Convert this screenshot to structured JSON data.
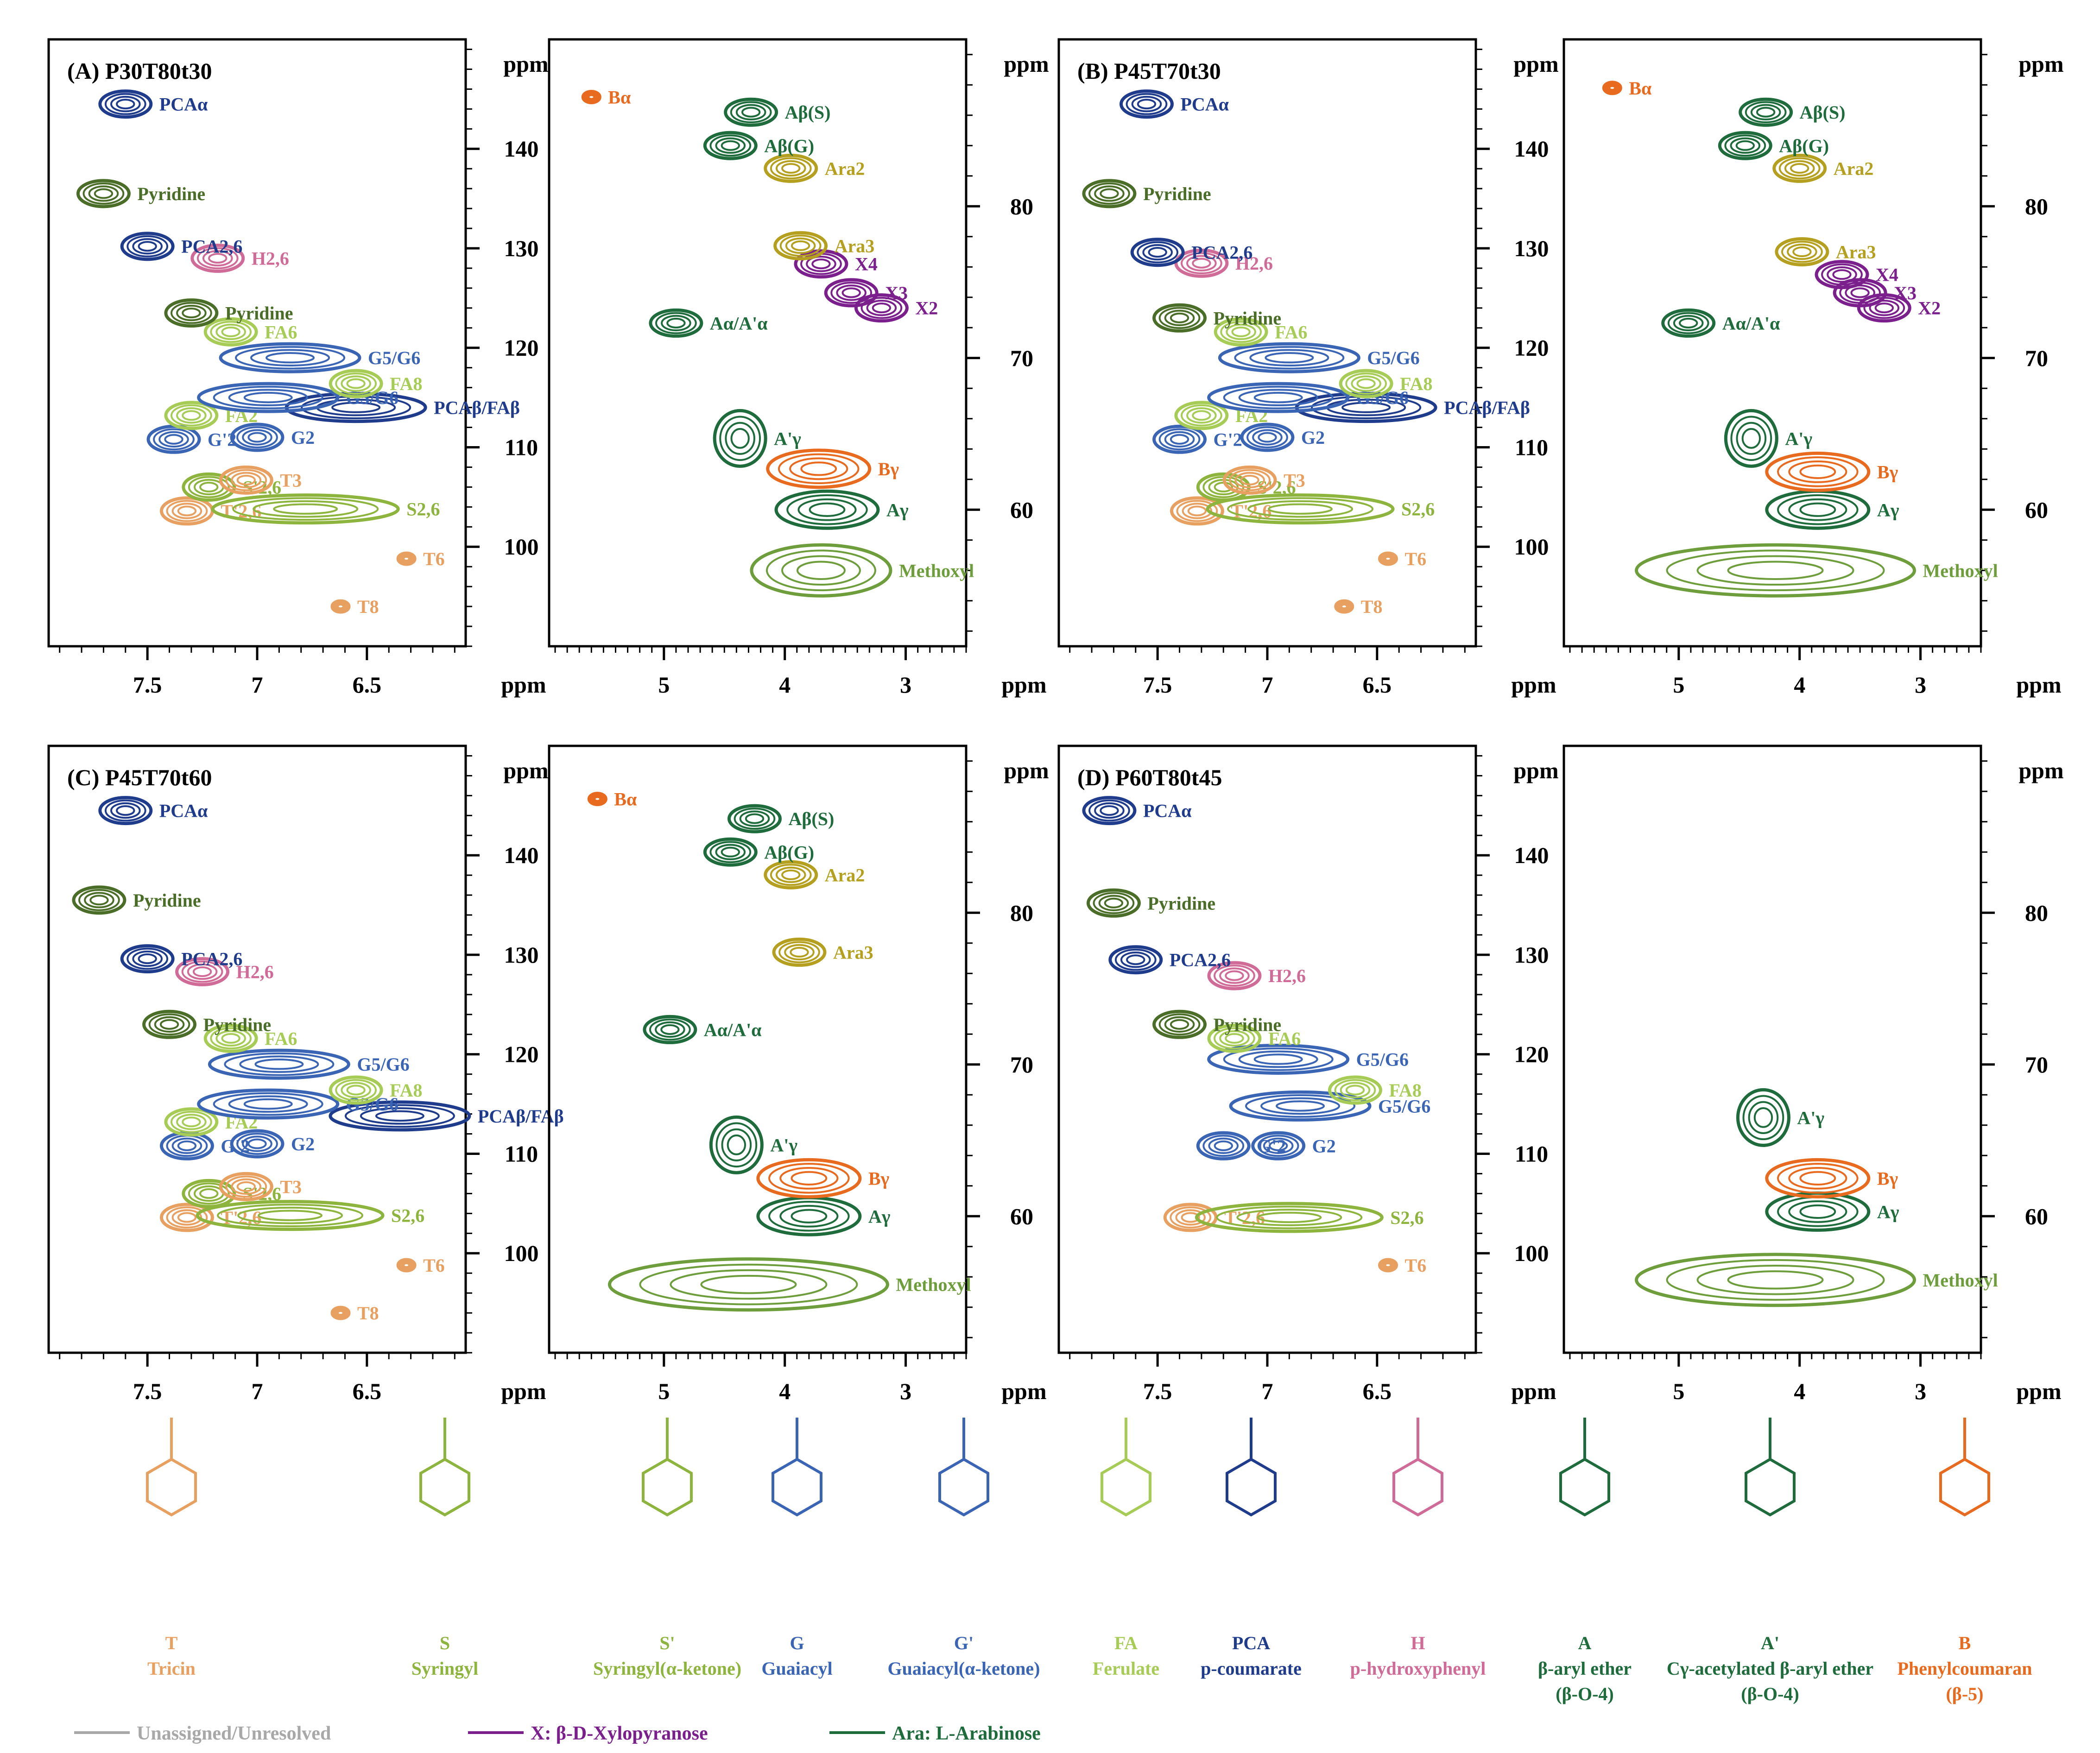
{
  "colors": {
    "tricin": "#E8A060",
    "syringyl": "#8DB43C",
    "guaiacyl": "#3A64B4",
    "ferulate": "#A6CC56",
    "pca": "#1F3C8C",
    "hydroxyphenyl": "#D06A96",
    "aryl_ether": "#1E6B3C",
    "methoxyl": "#6E9E3C",
    "phenylcoumaran": "#E86A1E",
    "xylose": "#7A1F8C",
    "arabinose": "#B4A01E",
    "pyridine": "#4A6E28",
    "unassigned": "#A8A8A8"
  },
  "chart_data": [
    {
      "type": "scatter",
      "title": "(A) P30T80t30",
      "region": "aromatic",
      "xlabel": "ppm",
      "ylabel": "ppm",
      "xlim": [
        7.95,
        6.05
      ],
      "ylim": [
        151,
        90
      ],
      "xticks": [
        7.5,
        7.0,
        6.5
      ],
      "yticks": [
        100,
        110,
        120,
        130,
        140
      ],
      "peaks": [
        {
          "label": "T8",
          "x": 6.62,
          "y": 94,
          "color": "tricin"
        },
        {
          "label": "T6",
          "x": 6.32,
          "y": 98.8,
          "color": "tricin"
        },
        {
          "label": "T'2,6",
          "x": 7.32,
          "y": 103.6,
          "color": "tricin"
        },
        {
          "label": "S2,6",
          "x": 6.78,
          "y": 103.8,
          "color": "syringyl"
        },
        {
          "label": "S'2,6",
          "x": 7.22,
          "y": 106,
          "color": "syringyl"
        },
        {
          "label": "T3",
          "x": 7.05,
          "y": 106.7,
          "color": "tricin"
        },
        {
          "label": "G'2",
          "x": 7.38,
          "y": 110.8,
          "color": "guaiacyl"
        },
        {
          "label": "G2",
          "x": 7.0,
          "y": 111,
          "color": "guaiacyl"
        },
        {
          "label": "PCAβ/FAβ",
          "x": 6.55,
          "y": 114,
          "color": "pca"
        },
        {
          "label": "FA2",
          "x": 7.3,
          "y": 113.2,
          "color": "ferulate"
        },
        {
          "label": "G5/G6",
          "x": 6.95,
          "y": 115,
          "color": "guaiacyl"
        },
        {
          "label": "G5/G6",
          "x": 6.85,
          "y": 119,
          "color": "guaiacyl"
        },
        {
          "label": "FA8",
          "x": 6.55,
          "y": 116.4,
          "color": "ferulate"
        },
        {
          "label": "FA6",
          "x": 7.12,
          "y": 121.6,
          "color": "ferulate"
        },
        {
          "label": "Pyridine",
          "x": 7.3,
          "y": 123.5,
          "color": "pyridine"
        },
        {
          "label": "H2,6",
          "x": 7.18,
          "y": 129,
          "color": "hydroxyphenyl"
        },
        {
          "label": "PCA2,6",
          "x": 7.5,
          "y": 130.2,
          "color": "pca"
        },
        {
          "label": "Pyridine",
          "x": 7.7,
          "y": 135.5,
          "color": "pyridine"
        },
        {
          "label": "PCAα",
          "x": 7.6,
          "y": 144.5,
          "color": "pca"
        }
      ]
    },
    {
      "type": "scatter",
      "title": "",
      "region": "side-chain",
      "xlabel": "ppm",
      "ylabel": "ppm",
      "xlim": [
        5.95,
        2.5
      ],
      "ylim": [
        91,
        51
      ],
      "xticks": [
        5,
        4,
        3
      ],
      "yticks": [
        60,
        70,
        80
      ],
      "peaks": [
        {
          "label": "Methoxyl",
          "x": 3.7,
          "y": 56,
          "color": "methoxyl"
        },
        {
          "label": "Aγ",
          "x": 3.65,
          "y": 60,
          "color": "aryl_ether"
        },
        {
          "label": "Bγ",
          "x": 3.72,
          "y": 62.7,
          "color": "phenylcoumaran"
        },
        {
          "label": "A'γ",
          "x": 4.37,
          "y": 64.7,
          "color": "aryl_ether"
        },
        {
          "label": "Aα/A'α",
          "x": 4.9,
          "y": 72.3,
          "color": "aryl_ether"
        },
        {
          "label": "X2",
          "x": 3.2,
          "y": 73.3,
          "color": "xylose"
        },
        {
          "label": "X3",
          "x": 3.45,
          "y": 74.3,
          "color": "xylose"
        },
        {
          "label": "X4",
          "x": 3.7,
          "y": 76.2,
          "color": "xylose"
        },
        {
          "label": "Ara3",
          "x": 3.87,
          "y": 77.4,
          "color": "arabinose"
        },
        {
          "label": "Ara2",
          "x": 3.95,
          "y": 82.5,
          "color": "arabinose"
        },
        {
          "label": "Aβ(G)",
          "x": 4.45,
          "y": 84,
          "color": "aryl_ether"
        },
        {
          "label": "Aβ(S)",
          "x": 4.28,
          "y": 86.2,
          "color": "aryl_ether"
        },
        {
          "label": "Bα",
          "x": 5.6,
          "y": 87.2,
          "color": "phenylcoumaran"
        }
      ]
    },
    {
      "type": "scatter",
      "title": "(B) P45T70t30",
      "region": "aromatic",
      "xlabel": "ppm",
      "ylabel": "ppm",
      "xlim": [
        7.95,
        6.05
      ],
      "ylim": [
        151,
        90
      ],
      "xticks": [
        7.5,
        7.0,
        6.5
      ],
      "yticks": [
        100,
        110,
        120,
        130,
        140
      ],
      "peaks": [
        {
          "label": "T8",
          "x": 6.65,
          "y": 94,
          "color": "tricin"
        },
        {
          "label": "T6",
          "x": 6.45,
          "y": 98.8,
          "color": "tricin"
        },
        {
          "label": "T'2,6",
          "x": 7.32,
          "y": 103.6,
          "color": "tricin"
        },
        {
          "label": "S2,6",
          "x": 6.85,
          "y": 103.8,
          "color": "syringyl"
        },
        {
          "label": "S'2,6",
          "x": 7.2,
          "y": 106,
          "color": "syringyl"
        },
        {
          "label": "T3",
          "x": 7.08,
          "y": 106.7,
          "color": "tricin"
        },
        {
          "label": "G'2",
          "x": 7.4,
          "y": 110.8,
          "color": "guaiacyl"
        },
        {
          "label": "G2",
          "x": 7.0,
          "y": 111,
          "color": "guaiacyl"
        },
        {
          "label": "PCAβ/FAβ",
          "x": 6.55,
          "y": 114,
          "color": "pca"
        },
        {
          "label": "FA2",
          "x": 7.3,
          "y": 113.2,
          "color": "ferulate"
        },
        {
          "label": "G5/G6",
          "x": 6.95,
          "y": 115,
          "color": "guaiacyl"
        },
        {
          "label": "G5/G6",
          "x": 6.9,
          "y": 119,
          "color": "guaiacyl"
        },
        {
          "label": "FA8",
          "x": 6.55,
          "y": 116.4,
          "color": "ferulate"
        },
        {
          "label": "FA6",
          "x": 7.12,
          "y": 121.6,
          "color": "ferulate"
        },
        {
          "label": "Pyridine",
          "x": 7.4,
          "y": 123,
          "color": "pyridine"
        },
        {
          "label": "H2,6",
          "x": 7.3,
          "y": 128.5,
          "color": "hydroxyphenyl"
        },
        {
          "label": "PCA2,6",
          "x": 7.5,
          "y": 129.6,
          "color": "pca"
        },
        {
          "label": "Pyridine",
          "x": 7.72,
          "y": 135.5,
          "color": "pyridine"
        },
        {
          "label": "PCAα",
          "x": 7.55,
          "y": 144.5,
          "color": "pca"
        }
      ]
    },
    {
      "type": "scatter",
      "title": "",
      "region": "side-chain",
      "xlabel": "ppm",
      "ylabel": "ppm",
      "xlim": [
        5.95,
        2.5
      ],
      "ylim": [
        91,
        51
      ],
      "xticks": [
        5,
        4,
        3
      ],
      "yticks": [
        60,
        70,
        80
      ],
      "peaks": [
        {
          "label": "Methoxyl",
          "x": 4.2,
          "y": 56,
          "color": "methoxyl"
        },
        {
          "label": "Aγ",
          "x": 3.85,
          "y": 60,
          "color": "aryl_ether"
        },
        {
          "label": "Bγ",
          "x": 3.85,
          "y": 62.5,
          "color": "phenylcoumaran"
        },
        {
          "label": "A'γ",
          "x": 4.4,
          "y": 64.7,
          "color": "aryl_ether"
        },
        {
          "label": "Aα/A'α",
          "x": 4.92,
          "y": 72.3,
          "color": "aryl_ether"
        },
        {
          "label": "X2",
          "x": 3.3,
          "y": 73.3,
          "color": "xylose"
        },
        {
          "label": "X3",
          "x": 3.5,
          "y": 74.3,
          "color": "xylose"
        },
        {
          "label": "X4",
          "x": 3.65,
          "y": 75.5,
          "color": "xylose"
        },
        {
          "label": "Ara3",
          "x": 3.98,
          "y": 77,
          "color": "arabinose"
        },
        {
          "label": "Ara2",
          "x": 4.0,
          "y": 82.5,
          "color": "arabinose"
        },
        {
          "label": "Aβ(G)",
          "x": 4.45,
          "y": 84,
          "color": "aryl_ether"
        },
        {
          "label": "Aβ(S)",
          "x": 4.28,
          "y": 86.2,
          "color": "aryl_ether"
        },
        {
          "label": "Bα",
          "x": 5.55,
          "y": 87.8,
          "color": "phenylcoumaran"
        }
      ]
    },
    {
      "type": "scatter",
      "title": "(C) P45T70t60",
      "region": "aromatic",
      "xlabel": "ppm",
      "ylabel": "ppm",
      "xlim": [
        7.95,
        6.05
      ],
      "ylim": [
        151,
        90
      ],
      "xticks": [
        7.5,
        7.0,
        6.5
      ],
      "yticks": [
        100,
        110,
        120,
        130,
        140
      ],
      "peaks": [
        {
          "label": "T8",
          "x": 6.62,
          "y": 94,
          "color": "tricin"
        },
        {
          "label": "T6",
          "x": 6.32,
          "y": 98.8,
          "color": "tricin"
        },
        {
          "label": "T'2,6",
          "x": 7.32,
          "y": 103.6,
          "color": "tricin"
        },
        {
          "label": "S2,6",
          "x": 6.85,
          "y": 103.8,
          "color": "syringyl"
        },
        {
          "label": "S'2,6",
          "x": 7.22,
          "y": 106,
          "color": "syringyl"
        },
        {
          "label": "T3",
          "x": 7.05,
          "y": 106.7,
          "color": "tricin"
        },
        {
          "label": "G'2",
          "x": 7.32,
          "y": 110.8,
          "color": "guaiacyl"
        },
        {
          "label": "G2",
          "x": 7.0,
          "y": 111,
          "color": "guaiacyl"
        },
        {
          "label": "PCAβ/FAβ",
          "x": 6.35,
          "y": 113.8,
          "color": "pca"
        },
        {
          "label": "FA2",
          "x": 7.3,
          "y": 113.2,
          "color": "ferulate"
        },
        {
          "label": "G5/G6",
          "x": 6.95,
          "y": 115,
          "color": "guaiacyl"
        },
        {
          "label": "G5/G6",
          "x": 6.9,
          "y": 119,
          "color": "guaiacyl"
        },
        {
          "label": "FA8",
          "x": 6.55,
          "y": 116.4,
          "color": "ferulate"
        },
        {
          "label": "FA6",
          "x": 7.12,
          "y": 121.6,
          "color": "ferulate"
        },
        {
          "label": "Pyridine",
          "x": 7.4,
          "y": 123,
          "color": "pyridine"
        },
        {
          "label": "H2,6",
          "x": 7.25,
          "y": 128.3,
          "color": "hydroxyphenyl"
        },
        {
          "label": "PCA2,6",
          "x": 7.5,
          "y": 129.6,
          "color": "pca"
        },
        {
          "label": "Pyridine",
          "x": 7.72,
          "y": 135.5,
          "color": "pyridine"
        },
        {
          "label": "PCAα",
          "x": 7.6,
          "y": 144.5,
          "color": "pca"
        }
      ]
    },
    {
      "type": "scatter",
      "title": "",
      "region": "side-chain",
      "xlabel": "ppm",
      "ylabel": "ppm",
      "xlim": [
        5.95,
        2.5
      ],
      "ylim": [
        91,
        51
      ],
      "xticks": [
        5,
        4,
        3
      ],
      "yticks": [
        60,
        70,
        80
      ],
      "peaks": [
        {
          "label": "Methoxyl",
          "x": 4.3,
          "y": 55.5,
          "color": "methoxyl"
        },
        {
          "label": "Aγ",
          "x": 3.8,
          "y": 60,
          "color": "aryl_ether"
        },
        {
          "label": "Bγ",
          "x": 3.8,
          "y": 62.5,
          "color": "phenylcoumaran"
        },
        {
          "label": "A'γ",
          "x": 4.4,
          "y": 64.7,
          "color": "aryl_ether"
        },
        {
          "label": "Aα/A'α",
          "x": 4.95,
          "y": 72.3,
          "color": "aryl_ether"
        },
        {
          "label": "Ara3",
          "x": 3.88,
          "y": 77.4,
          "color": "arabinose"
        },
        {
          "label": "Ara2",
          "x": 3.95,
          "y": 82.5,
          "color": "arabinose"
        },
        {
          "label": "Aβ(G)",
          "x": 4.45,
          "y": 84,
          "color": "aryl_ether"
        },
        {
          "label": "Aβ(S)",
          "x": 4.25,
          "y": 86.2,
          "color": "aryl_ether"
        },
        {
          "label": "Bα",
          "x": 5.55,
          "y": 87.5,
          "color": "phenylcoumaran"
        }
      ]
    },
    {
      "type": "scatter",
      "title": "(D) P60T80t45",
      "region": "aromatic",
      "xlabel": "ppm",
      "ylabel": "ppm",
      "xlim": [
        7.95,
        6.05
      ],
      "ylim": [
        151,
        90
      ],
      "xticks": [
        7.5,
        7.0,
        6.5
      ],
      "yticks": [
        100,
        110,
        120,
        130,
        140
      ],
      "peaks": [
        {
          "label": "T6",
          "x": 6.45,
          "y": 98.8,
          "color": "tricin"
        },
        {
          "label": "T'2,6",
          "x": 7.35,
          "y": 103.6,
          "color": "tricin"
        },
        {
          "label": "S2,6",
          "x": 6.9,
          "y": 103.6,
          "color": "syringyl"
        },
        {
          "label": "G'2",
          "x": 7.2,
          "y": 110.8,
          "color": "guaiacyl"
        },
        {
          "label": "G2",
          "x": 6.95,
          "y": 110.8,
          "color": "guaiacyl"
        },
        {
          "label": "G5/G6",
          "x": 6.85,
          "y": 114.8,
          "color": "guaiacyl"
        },
        {
          "label": "G5/G6",
          "x": 6.95,
          "y": 119.5,
          "color": "guaiacyl"
        },
        {
          "label": "FA8",
          "x": 6.6,
          "y": 116.4,
          "color": "ferulate"
        },
        {
          "label": "FA6",
          "x": 7.15,
          "y": 121.6,
          "color": "ferulate"
        },
        {
          "label": "Pyridine",
          "x": 7.4,
          "y": 123,
          "color": "pyridine"
        },
        {
          "label": "H2,6",
          "x": 7.15,
          "y": 127.9,
          "color": "hydroxyphenyl"
        },
        {
          "label": "PCA2,6",
          "x": 7.6,
          "y": 129.5,
          "color": "pca"
        },
        {
          "label": "Pyridine",
          "x": 7.7,
          "y": 135.2,
          "color": "pyridine"
        },
        {
          "label": "PCAα",
          "x": 7.72,
          "y": 144.5,
          "color": "pca"
        }
      ]
    },
    {
      "type": "scatter",
      "title": "",
      "region": "side-chain",
      "xlabel": "ppm",
      "ylabel": "ppm",
      "xlim": [
        5.95,
        2.5
      ],
      "ylim": [
        91,
        51
      ],
      "xticks": [
        5,
        4,
        3
      ],
      "yticks": [
        60,
        70,
        80
      ],
      "peaks": [
        {
          "label": "Methoxyl",
          "x": 4.2,
          "y": 55.8,
          "color": "methoxyl"
        },
        {
          "label": "Aγ",
          "x": 3.85,
          "y": 60.3,
          "color": "aryl_ether"
        },
        {
          "label": "Bγ",
          "x": 3.85,
          "y": 62.5,
          "color": "phenylcoumaran"
        },
        {
          "label": "A'γ",
          "x": 4.3,
          "y": 66.5,
          "color": "aryl_ether"
        }
      ]
    }
  ],
  "panel_labels": {
    "A": "(A) P30T80t30",
    "B": "(B) P45T70t30",
    "C": "(C) P45T70t60",
    "D": "(D) P60T80t45"
  },
  "structures": [
    {
      "code": "T",
      "name": "Tricin",
      "color": "tricin"
    },
    {
      "code": "S",
      "name": "Syringyl",
      "color": "syringyl"
    },
    {
      "code": "S'",
      "name": "Syringyl(α-ketone)",
      "color": "syringyl"
    },
    {
      "code": "G",
      "name": "Guaiacyl",
      "color": "guaiacyl"
    },
    {
      "code": "G'",
      "name": "Guaiacyl(α-ketone)",
      "color": "guaiacyl"
    },
    {
      "code": "FA",
      "name": "Ferulate",
      "color": "ferulate"
    },
    {
      "code": "PCA",
      "name": "p-coumarate",
      "color": "pca"
    },
    {
      "code": "H",
      "name": "p-hydroxyphenyl",
      "color": "hydroxyphenyl"
    },
    {
      "code": "A",
      "name": "β-aryl ether",
      "sub": "(β-O-4)",
      "color": "aryl_ether"
    },
    {
      "code": "A'",
      "name": "Cγ-acetylated β-aryl ether",
      "sub": "(β-O-4)",
      "color": "aryl_ether"
    },
    {
      "code": "B",
      "name": "Phenylcoumaran",
      "sub": "(β-5)",
      "color": "phenylcoumaran"
    }
  ],
  "legend": [
    {
      "label": "Unassigned/Unresolved",
      "color": "unassigned"
    },
    {
      "label": "X: β-D-Xylopyranose",
      "color": "xylose"
    },
    {
      "label": "Ara: L-Arabinose",
      "color": "aryl_ether"
    }
  ]
}
